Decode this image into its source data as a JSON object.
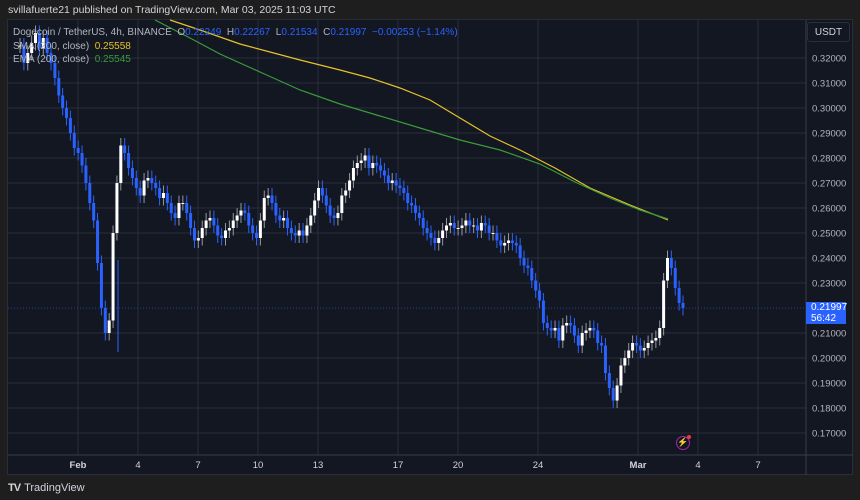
{
  "header": {
    "published": "svillafuerte21 published on TradingView.com, Mar 03, 2025 11:03 UTC"
  },
  "legend": {
    "symbol": "Dogecoin / TetherUS, 4h, BINANCE",
    "o_label": "O",
    "o": "0.22249",
    "h_label": "H",
    "h": "0.22267",
    "l_label": "L",
    "l": "0.21534",
    "c_label": "C",
    "c": "0.21997",
    "change": "−0.00253 (−1.14%)",
    "sma_label": "SMA (200, close)",
    "sma_value": "0.25558",
    "ema_label": "EMA (200, close)",
    "ema_value": "0.25545"
  },
  "axis": {
    "currency": "USDT",
    "price_ticks": [
      "0.32000",
      "0.31000",
      "0.30000",
      "0.29000",
      "0.28000",
      "0.27000",
      "0.26000",
      "0.25000",
      "0.24000",
      "0.23000",
      "0.21000",
      "0.20000",
      "0.19000",
      "0.18000",
      "0.17000"
    ],
    "current_price": "0.21997",
    "countdown": "56:42",
    "time_ticks": [
      "Feb",
      "4",
      "7",
      "10",
      "13",
      "17",
      "20",
      "24",
      "Mar",
      "4",
      "7"
    ]
  },
  "brand": {
    "name": "TradingView",
    "logo": "TV"
  },
  "colors": {
    "background": "#131722",
    "up": "#ffffff",
    "down": "#2962ff",
    "sma": "#e6c229",
    "ema": "#3a9b3a",
    "grid": "#2a2e39"
  },
  "chart_data": {
    "type": "candlestick",
    "title": "Dogecoin / TetherUS, 4h, BINANCE",
    "xlabel": "",
    "ylabel": "USDT",
    "ylim": [
      0.165,
      0.33
    ],
    "x_ticks": [
      "Feb",
      "4",
      "7",
      "10",
      "13",
      "17",
      "20",
      "24",
      "Mar",
      "4",
      "7"
    ],
    "y_ticks": [
      0.32,
      0.31,
      0.3,
      0.29,
      0.28,
      0.27,
      0.26,
      0.25,
      0.24,
      0.23,
      0.21,
      0.2,
      0.19,
      0.18,
      0.17
    ],
    "grid": true,
    "candles_close": [
      0.325,
      0.318,
      0.322,
      0.326,
      0.33,
      0.324,
      0.328,
      0.322,
      0.318,
      0.312,
      0.305,
      0.3,
      0.296,
      0.29,
      0.284,
      0.282,
      0.277,
      0.27,
      0.262,
      0.255,
      0.238,
      0.22,
      0.21,
      0.215,
      0.25,
      0.27,
      0.285,
      0.282,
      0.276,
      0.272,
      0.268,
      0.265,
      0.271,
      0.272,
      0.27,
      0.268,
      0.264,
      0.266,
      0.262,
      0.258,
      0.256,
      0.262,
      0.262,
      0.258,
      0.252,
      0.247,
      0.248,
      0.252,
      0.255,
      0.256,
      0.253,
      0.249,
      0.248,
      0.251,
      0.252,
      0.255,
      0.257,
      0.259,
      0.258,
      0.253,
      0.25,
      0.248,
      0.255,
      0.264,
      0.265,
      0.262,
      0.257,
      0.255,
      0.256,
      0.252,
      0.25,
      0.249,
      0.251,
      0.249,
      0.253,
      0.257,
      0.263,
      0.268,
      0.265,
      0.261,
      0.257,
      0.256,
      0.258,
      0.265,
      0.267,
      0.271,
      0.276,
      0.278,
      0.279,
      0.281,
      0.276,
      0.278,
      0.277,
      0.275,
      0.273,
      0.27,
      0.271,
      0.269,
      0.268,
      0.266,
      0.262,
      0.261,
      0.258,
      0.256,
      0.252,
      0.25,
      0.248,
      0.246,
      0.248,
      0.251,
      0.253,
      0.254,
      0.252,
      0.252,
      0.253,
      0.255,
      0.253,
      0.253,
      0.251,
      0.254,
      0.253,
      0.25,
      0.25,
      0.247,
      0.245,
      0.246,
      0.247,
      0.246,
      0.245,
      0.24,
      0.237,
      0.236,
      0.231,
      0.227,
      0.223,
      0.214,
      0.212,
      0.211,
      0.212,
      0.207,
      0.213,
      0.214,
      0.213,
      0.209,
      0.205,
      0.21,
      0.211,
      0.212,
      0.211,
      0.206,
      0.205,
      0.194,
      0.188,
      0.183,
      0.189,
      0.197,
      0.2,
      0.203,
      0.206,
      0.205,
      0.203,
      0.204,
      0.206,
      0.207,
      0.208,
      0.212,
      0.231,
      0.24,
      0.236,
      0.228,
      0.222,
      0.22
    ],
    "sma200": {
      "name": "SMA (200, close)",
      "last": 0.25558
    },
    "ema200": {
      "name": "EMA (200, close)",
      "last": 0.25545
    },
    "last_close": 0.21997
  }
}
